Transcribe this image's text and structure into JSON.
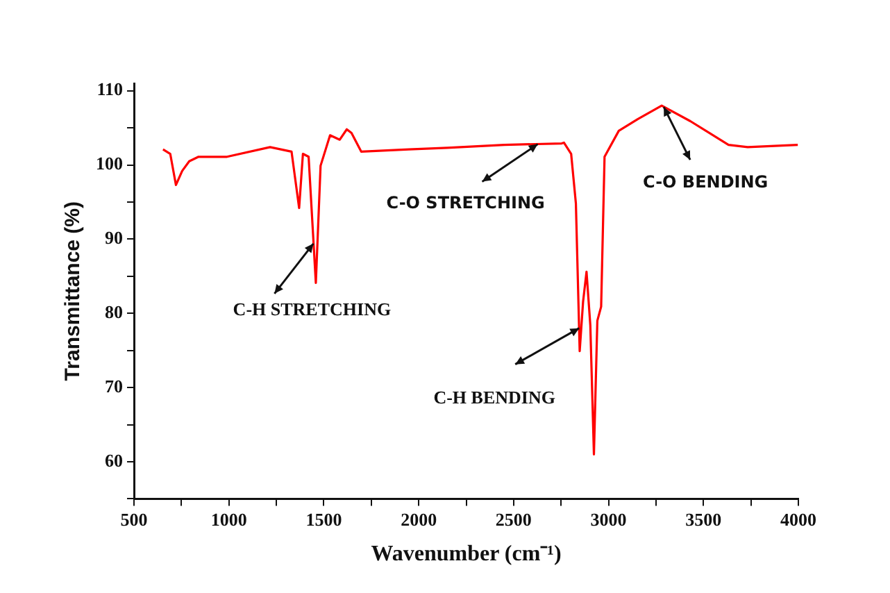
{
  "chart_data": {
    "type": "line",
    "xlabel": "Wavenumber (cm⁻¹)",
    "ylabel": "Transmittance (%)",
    "xlim": [
      500,
      4000
    ],
    "ylim": [
      55,
      111
    ],
    "xticks": [
      500,
      {
        "value": 750,
        "label": null
      },
      1000,
      {
        "value": 1250,
        "label": null
      },
      1500,
      {
        "value": 1750,
        "label": null
      },
      2000,
      {
        "value": 2250,
        "label": null
      },
      2500,
      {
        "value": 2750,
        "label": null
      },
      3000,
      {
        "value": 3250,
        "label": null
      },
      3500,
      {
        "value": 3750,
        "label": null
      },
      4000
    ],
    "yticks": [
      {
        "value": 55,
        "label": null
      },
      60,
      {
        "value": 65,
        "label": null
      },
      70,
      {
        "value": 75,
        "label": null
      },
      80,
      {
        "value": 85,
        "label": null
      },
      90,
      {
        "value": 95,
        "label": null
      },
      100,
      {
        "value": 105,
        "label": null
      },
      110
    ],
    "grid": false,
    "series": [
      {
        "color": "#ff0000",
        "x": [
          653,
          691,
          721,
          754,
          791,
          840,
          990,
          1217,
          1330,
          1370,
          1390,
          1420,
          1458,
          1483,
          1533,
          1584,
          1621,
          1646,
          1697,
          1948,
          2150,
          2451,
          2753,
          2765,
          2803,
          2828,
          2848,
          2866,
          2884,
          2904,
          2923,
          2941,
          2961,
          2979,
          3054,
          3155,
          3280,
          3431,
          3632,
          3733,
          3997
        ],
        "values": [
          102.1,
          101.5,
          97.3,
          99.2,
          100.5,
          101.1,
          101.1,
          102.4,
          101.8,
          94.2,
          101.5,
          101.1,
          84.1,
          99.9,
          104,
          103.4,
          104.8,
          104.3,
          101.8,
          102.1,
          102.3,
          102.7,
          102.9,
          103,
          101.5,
          94.8,
          74.9,
          81.6,
          85.6,
          78.4,
          61,
          79,
          80.9,
          101.1,
          104.6,
          106.2,
          108,
          105.9,
          102.7,
          102.4,
          102.7
        ]
      }
    ],
    "annotations": [
      {
        "text": "C-H STRETCHING",
        "x": 1445,
        "y": 89.4
      },
      {
        "text": "C-O STRETCHING",
        "x": 2627,
        "y": 102.8
      },
      {
        "text": "C-H BENDING",
        "x": 2845,
        "y": 78
      },
      {
        "text": "C-O BENDING",
        "x": 3291,
        "y": 107.8
      }
    ]
  }
}
